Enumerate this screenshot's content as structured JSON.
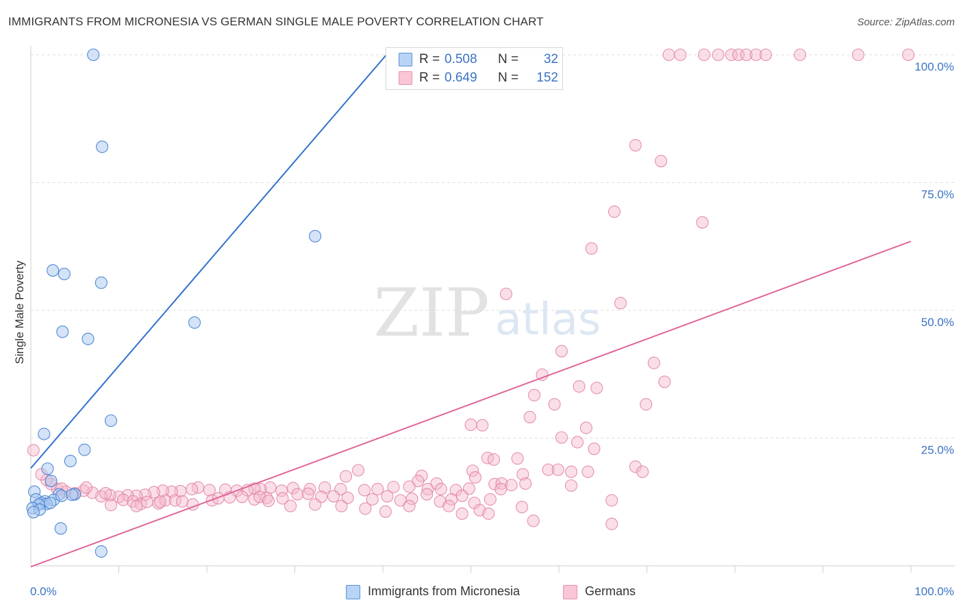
{
  "header": {
    "title": "IMMIGRANTS FROM MICRONESIA VS GERMAN SINGLE MALE POVERTY CORRELATION CHART",
    "source": "Source: ZipAtlas.com"
  },
  "watermark": {
    "zip": "ZIP",
    "atlas": "atlas"
  },
  "legend_top": {
    "rows": [
      {
        "r_label": "R =",
        "r_value": "0.508",
        "n_label": "N =",
        "n_value": "32"
      },
      {
        "r_label": "R =",
        "r_value": "0.649",
        "n_label": "N =",
        "n_value": "152"
      }
    ]
  },
  "legend_bottom": {
    "items": [
      {
        "label": "Immigrants from Micronesia"
      },
      {
        "label": "Germans"
      }
    ]
  },
  "chart_data": {
    "type": "scatter",
    "title": "IMMIGRANTS FROM MICRONESIA VS GERMAN SINGLE MALE POVERTY CORRELATION CHART",
    "xlabel": "",
    "ylabel": "Single Male Poverty",
    "xlim": [
      0,
      100
    ],
    "ylim": [
      0,
      100
    ],
    "x_ticks": [
      {
        "value": 0,
        "label": "0.0%"
      },
      {
        "value": 100,
        "label": "100.0%"
      }
    ],
    "y_ticks": [
      {
        "value": 25,
        "label": "25.0%"
      },
      {
        "value": 50,
        "label": "50.0%"
      },
      {
        "value": 75,
        "label": "75.0%"
      },
      {
        "value": 100,
        "label": "100.0%"
      }
    ],
    "grid": "horizontal dashed",
    "legend_position": "bottom",
    "colors": {
      "micronesia_fill": "#a9c8ef",
      "micronesia_stroke": "#3f7fd0",
      "micronesia_line": "#2f70cf",
      "germans_fill": "#f5b8cc",
      "germans_stroke": "#e07fa2",
      "germans_line": "#e0649a",
      "rvalue_text": "#3a73c4"
    },
    "series": [
      {
        "name": "Immigrants from Micronesia",
        "r": 0.508,
        "n": 32,
        "trend": {
          "x0": 0,
          "y0": 19.1,
          "x1": 40.4,
          "y1": 100
        },
        "points": [
          [
            7.1,
            100
          ],
          [
            8.1,
            82.0
          ],
          [
            32.3,
            64.5
          ],
          [
            2.5,
            57.8
          ],
          [
            3.8,
            57.1
          ],
          [
            8.0,
            55.4
          ],
          [
            18.6,
            47.6
          ],
          [
            3.6,
            45.8
          ],
          [
            6.5,
            44.4
          ],
          [
            9.1,
            28.4
          ],
          [
            1.5,
            25.8
          ],
          [
            6.1,
            22.7
          ],
          [
            4.5,
            20.5
          ],
          [
            1.9,
            19.0
          ],
          [
            2.3,
            16.6
          ],
          [
            3.2,
            14.0
          ],
          [
            0.4,
            14.5
          ],
          [
            5.0,
            14.0
          ],
          [
            0.6,
            13.0
          ],
          [
            1.6,
            12.6
          ],
          [
            2.6,
            12.9
          ],
          [
            1.2,
            12.3
          ],
          [
            1.8,
            12.1
          ],
          [
            2.2,
            12.3
          ],
          [
            0.9,
            12.0
          ],
          [
            3.5,
            13.7
          ],
          [
            4.7,
            13.9
          ],
          [
            0.2,
            11.3
          ],
          [
            1.0,
            11.0
          ],
          [
            0.3,
            10.5
          ],
          [
            3.4,
            7.3
          ],
          [
            8.0,
            2.8
          ]
        ]
      },
      {
        "name": "Germans",
        "r": 0.649,
        "n": 152,
        "trend": {
          "x0": 0,
          "y0": -0.2,
          "x1": 100,
          "y1": 63.5
        },
        "points": [
          [
            72.5,
            100
          ],
          [
            73.8,
            100
          ],
          [
            76.5,
            100
          ],
          [
            78.1,
            100
          ],
          [
            79.6,
            100
          ],
          [
            80.4,
            100
          ],
          [
            81.3,
            100
          ],
          [
            82.4,
            100
          ],
          [
            83.5,
            100
          ],
          [
            87.4,
            100
          ],
          [
            94.0,
            100
          ],
          [
            99.7,
            100
          ],
          [
            68.7,
            82.3
          ],
          [
            71.6,
            79.2
          ],
          [
            66.3,
            69.3
          ],
          [
            76.3,
            67.2
          ],
          [
            63.7,
            62.1
          ],
          [
            54.0,
            53.2
          ],
          [
            67.0,
            51.4
          ],
          [
            60.3,
            42.0
          ],
          [
            70.8,
            39.7
          ],
          [
            58.1,
            37.4
          ],
          [
            72.0,
            36.0
          ],
          [
            62.3,
            35.1
          ],
          [
            64.3,
            34.8
          ],
          [
            57.2,
            33.4
          ],
          [
            59.5,
            31.6
          ],
          [
            69.9,
            31.6
          ],
          [
            56.7,
            29.1
          ],
          [
            50.0,
            27.6
          ],
          [
            51.3,
            27.5
          ],
          [
            63.1,
            27.0
          ],
          [
            60.3,
            25.1
          ],
          [
            62.1,
            24.2
          ],
          [
            64.0,
            22.9
          ],
          [
            51.9,
            21.1
          ],
          [
            52.6,
            20.8
          ],
          [
            55.3,
            21.0
          ],
          [
            68.7,
            19.4
          ],
          [
            58.8,
            18.8
          ],
          [
            59.9,
            18.8
          ],
          [
            61.4,
            18.4
          ],
          [
            63.3,
            18.4
          ],
          [
            69.5,
            18.4
          ],
          [
            50.2,
            18.6
          ],
          [
            55.9,
            17.9
          ],
          [
            50.5,
            17.3
          ],
          [
            37.2,
            18.7
          ],
          [
            44.4,
            17.6
          ],
          [
            35.8,
            17.5
          ],
          [
            44.0,
            16.6
          ],
          [
            46.1,
            16.1
          ],
          [
            52.7,
            16.0
          ],
          [
            53.5,
            16.1
          ],
          [
            54.6,
            15.8
          ],
          [
            61.4,
            15.7
          ],
          [
            53.4,
            15.0
          ],
          [
            49.8,
            15.1
          ],
          [
            48.3,
            14.8
          ],
          [
            46.6,
            15.0
          ],
          [
            45.1,
            15.0
          ],
          [
            43.0,
            15.5
          ],
          [
            41.2,
            15.4
          ],
          [
            39.4,
            15.0
          ],
          [
            37.9,
            14.8
          ],
          [
            35.2,
            15.0
          ],
          [
            33.4,
            15.3
          ],
          [
            31.7,
            15.0
          ],
          [
            29.8,
            15.2
          ],
          [
            28.5,
            14.7
          ],
          [
            27.2,
            15.3
          ],
          [
            26.1,
            15.0
          ],
          [
            25.4,
            15.1
          ],
          [
            24.6,
            14.8
          ],
          [
            23.4,
            14.7
          ],
          [
            22.1,
            14.9
          ],
          [
            20.3,
            14.8
          ],
          [
            19.0,
            15.3
          ],
          [
            18.3,
            15.0
          ],
          [
            17.0,
            14.6
          ],
          [
            16.0,
            14.5
          ],
          [
            15.0,
            14.7
          ],
          [
            14.0,
            14.4
          ],
          [
            13.0,
            13.9
          ],
          [
            12.0,
            13.7
          ],
          [
            11.0,
            13.8
          ],
          [
            10.0,
            13.5
          ],
          [
            9.0,
            13.8
          ],
          [
            8.0,
            13.6
          ],
          [
            7.0,
            14.3
          ],
          [
            6.0,
            14.7
          ],
          [
            5.0,
            14.2
          ],
          [
            4.0,
            14.5
          ],
          [
            3.0,
            15.0
          ],
          [
            2.3,
            16.0
          ],
          [
            1.8,
            16.8
          ],
          [
            1.2,
            17.9
          ],
          [
            0.3,
            22.6
          ],
          [
            3.5,
            15.1
          ],
          [
            6.3,
            15.3
          ],
          [
            8.5,
            14.2
          ],
          [
            10.5,
            12.9
          ],
          [
            11.6,
            12.6
          ],
          [
            12.5,
            12.1
          ],
          [
            13.2,
            12.5
          ],
          [
            14.5,
            12.2
          ],
          [
            15.3,
            12.8
          ],
          [
            16.4,
            12.8
          ],
          [
            17.2,
            12.6
          ],
          [
            20.6,
            12.8
          ],
          [
            21.3,
            13.2
          ],
          [
            22.6,
            13.4
          ],
          [
            24.0,
            13.5
          ],
          [
            25.4,
            13.0
          ],
          [
            26.8,
            13.3
          ],
          [
            28.6,
            13.2
          ],
          [
            30.3,
            14.0
          ],
          [
            31.5,
            14.1
          ],
          [
            33.0,
            13.5
          ],
          [
            34.4,
            13.6
          ],
          [
            36.0,
            13.3
          ],
          [
            38.8,
            13.0
          ],
          [
            40.5,
            13.6
          ],
          [
            42.0,
            12.8
          ],
          [
            43.3,
            13.1
          ],
          [
            45.0,
            14.0
          ],
          [
            46.5,
            12.6
          ],
          [
            47.8,
            13.0
          ],
          [
            49.0,
            13.7
          ],
          [
            50.4,
            12.3
          ],
          [
            52.2,
            13.0
          ],
          [
            47.5,
            11.7
          ],
          [
            51.0,
            10.9
          ],
          [
            52.0,
            10.2
          ],
          [
            55.8,
            11.5
          ],
          [
            57.1,
            8.8
          ],
          [
            66.0,
            12.8
          ],
          [
            66.0,
            8.2
          ],
          [
            35.3,
            11.7
          ],
          [
            38.0,
            11.2
          ],
          [
            40.3,
            10.6
          ],
          [
            9.1,
            11.9
          ],
          [
            12.0,
            11.7
          ],
          [
            26.0,
            13.5
          ],
          [
            18.4,
            12.0
          ],
          [
            27.0,
            12.7
          ],
          [
            29.5,
            11.7
          ],
          [
            43.0,
            11.7
          ],
          [
            56.2,
            16.1
          ],
          [
            49.0,
            10.2
          ],
          [
            32.3,
            12.0
          ],
          [
            14.7,
            12.5
          ]
        ]
      }
    ]
  }
}
